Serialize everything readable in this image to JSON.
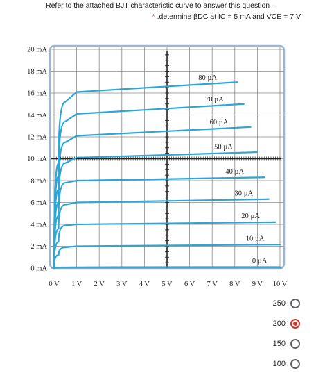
{
  "question": {
    "line1": "Refer to the attached BJT characteristic curve to answer this question –",
    "required_mark": "*",
    "line2": ".determine βDC at IC = 5 mA and VCE = 7 V"
  },
  "chart_data": {
    "type": "line",
    "title": "",
    "xlabel": "",
    "ylabel": "",
    "x_ticks": [
      "0 V",
      "1 V",
      "2 V",
      "3 V",
      "4 V",
      "5 V",
      "6 V",
      "7 V",
      "8 V",
      "9 V",
      "10 V"
    ],
    "y_ticks": [
      "0 mA",
      "2 mA",
      "4 mA",
      "6 mA",
      "8 mA",
      "10 mA",
      "12 mA",
      "14 mA",
      "16 mA",
      "18 mA",
      "20 mA"
    ],
    "xlim": [
      0,
      10
    ],
    "ylim": [
      0,
      20
    ],
    "grid": true,
    "colors": {
      "curve": "#2ba6d6",
      "plot_bg": "#ffffff",
      "frame": "#9bb7d4",
      "grid": "#8a8a8a",
      "axis": "#222222"
    },
    "series": [
      {
        "name": "0 µA",
        "x": [
          0.0,
          0.2,
          10.0
        ],
        "y": [
          0.0,
          0.05,
          0.1
        ],
        "label_x": 9.1
      },
      {
        "name": "10 µA",
        "x": [
          0.0,
          0.2,
          0.5,
          1.0,
          10.0
        ],
        "y": [
          0.0,
          1.2,
          1.9,
          2.0,
          2.15
        ],
        "label_x": 8.9
      },
      {
        "name": "20 µA",
        "x": [
          0.0,
          0.2,
          0.5,
          1.0,
          9.8
        ],
        "y": [
          0.0,
          2.4,
          3.9,
          4.0,
          4.2
        ],
        "label_x": 8.7
      },
      {
        "name": "30 µA",
        "x": [
          0.0,
          0.2,
          0.5,
          1.0,
          9.5
        ],
        "y": [
          0.0,
          3.6,
          5.8,
          6.0,
          6.3
        ],
        "label_x": 8.4
      },
      {
        "name": "40 µA",
        "x": [
          0.0,
          0.2,
          0.5,
          1.0,
          9.3
        ],
        "y": [
          0.0,
          4.8,
          7.8,
          8.0,
          8.3
        ],
        "label_x": 8.0
      },
      {
        "name": "50 µA",
        "x": [
          0.0,
          0.2,
          0.5,
          1.0,
          9.0
        ],
        "y": [
          0.0,
          6.0,
          9.6,
          10.1,
          10.6
        ],
        "label_x": 7.5
      },
      {
        "name": "60 µA",
        "x": [
          0.0,
          0.2,
          0.5,
          1.0,
          8.7
        ],
        "y": [
          0.0,
          7.2,
          11.5,
          12.1,
          12.9
        ],
        "label_x": 7.3
      },
      {
        "name": "70 µA",
        "x": [
          0.0,
          0.2,
          0.5,
          1.0,
          8.4
        ],
        "y": [
          0.0,
          8.4,
          13.4,
          14.1,
          15.0
        ],
        "label_x": 7.1
      },
      {
        "name": "80 µA",
        "x": [
          0.0,
          0.2,
          0.5,
          1.0,
          8.1
        ],
        "y": [
          0.0,
          9.6,
          15.2,
          16.1,
          17.0
        ],
        "label_x": 6.8
      }
    ]
  },
  "options": [
    {
      "label": "250",
      "selected": false
    },
    {
      "label": "200",
      "selected": true
    },
    {
      "label": "150",
      "selected": false
    },
    {
      "label": "100",
      "selected": false
    }
  ]
}
